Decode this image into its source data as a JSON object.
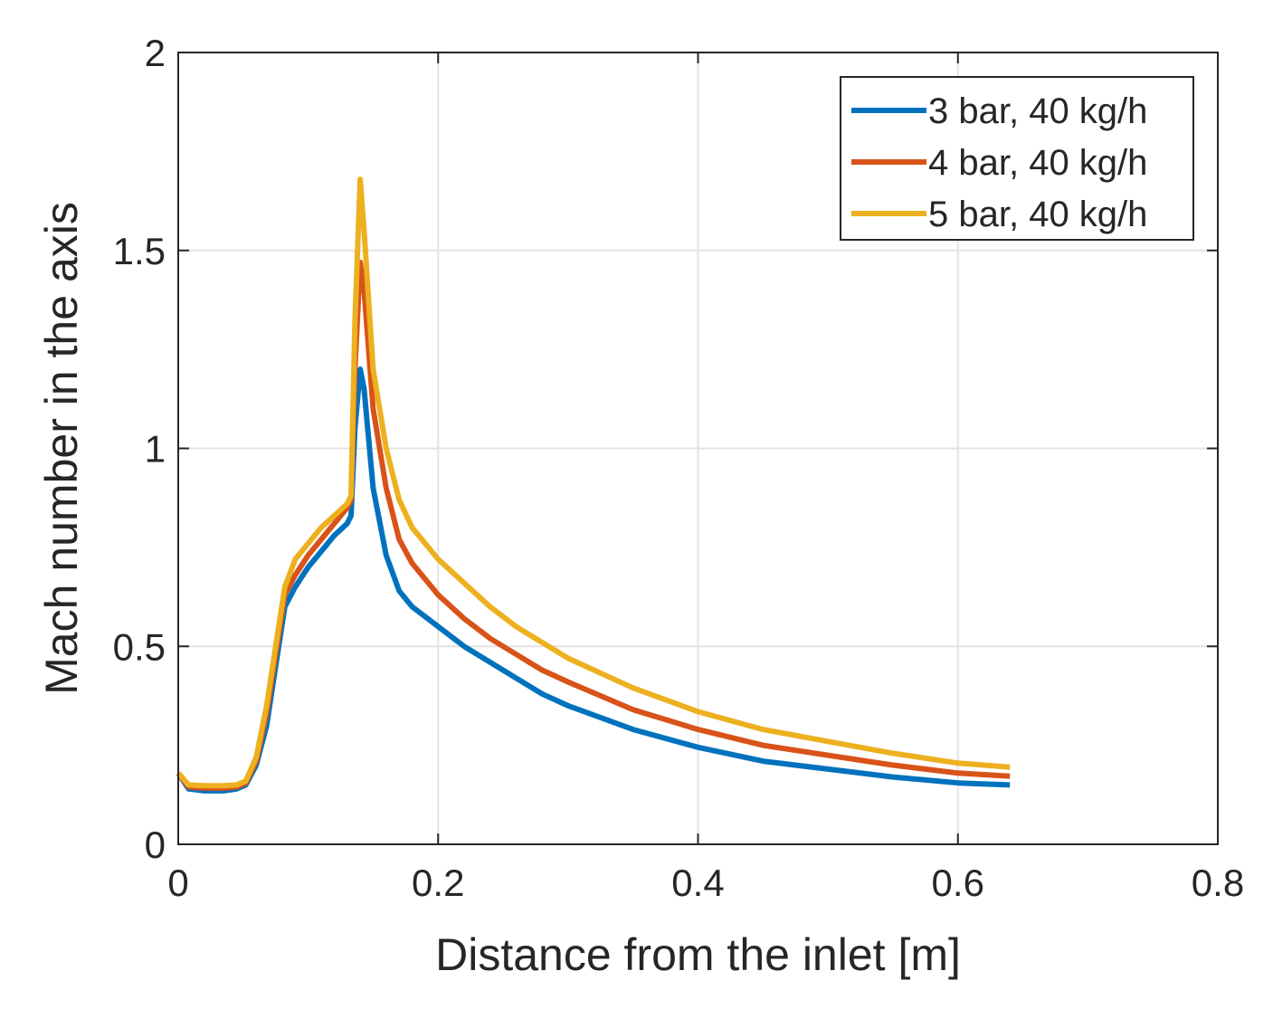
{
  "chart_data": {
    "type": "line",
    "title": "",
    "xlabel": "Distance from the inlet [m]",
    "ylabel": "Mach number in the axis",
    "xlim": [
      0,
      0.8
    ],
    "ylim": [
      0,
      2
    ],
    "xticks": [
      0,
      0.2,
      0.4,
      0.6,
      0.8
    ],
    "xtick_labels": [
      "0",
      "0.2",
      "0.4",
      "0.6",
      "0.8"
    ],
    "yticks": [
      0,
      0.5,
      1,
      1.5,
      2
    ],
    "ytick_labels": [
      "0",
      "0.5",
      "1",
      "1.5",
      "2"
    ],
    "grid": true,
    "legend_position": "top-right",
    "series": [
      {
        "name": "3 bar, 40 kg/h",
        "color": "#0072BD",
        "x": [
          0,
          0.008,
          0.02,
          0.035,
          0.045,
          0.052,
          0.06,
          0.068,
          0.075,
          0.082,
          0.09,
          0.1,
          0.11,
          0.12,
          0.13,
          0.133,
          0.136,
          0.14,
          0.143,
          0.15,
          0.16,
          0.17,
          0.18,
          0.2,
          0.22,
          0.24,
          0.26,
          0.28,
          0.3,
          0.35,
          0.4,
          0.45,
          0.5,
          0.55,
          0.6,
          0.64
        ],
        "y": [
          0.18,
          0.14,
          0.135,
          0.135,
          0.14,
          0.15,
          0.2,
          0.3,
          0.45,
          0.6,
          0.65,
          0.7,
          0.74,
          0.78,
          0.81,
          0.83,
          1.05,
          1.2,
          1.15,
          0.9,
          0.73,
          0.64,
          0.6,
          0.55,
          0.5,
          0.46,
          0.42,
          0.38,
          0.35,
          0.29,
          0.245,
          0.21,
          0.19,
          0.17,
          0.155,
          0.15
        ]
      },
      {
        "name": "4 bar, 40 kg/h",
        "color": "#D95319",
        "x": [
          0,
          0.008,
          0.02,
          0.035,
          0.045,
          0.052,
          0.06,
          0.068,
          0.075,
          0.082,
          0.09,
          0.1,
          0.11,
          0.12,
          0.13,
          0.133,
          0.136,
          0.14,
          0.143,
          0.15,
          0.16,
          0.17,
          0.18,
          0.2,
          0.22,
          0.24,
          0.26,
          0.28,
          0.3,
          0.35,
          0.4,
          0.45,
          0.5,
          0.55,
          0.6,
          0.64
        ],
        "y": [
          0.18,
          0.145,
          0.142,
          0.142,
          0.145,
          0.155,
          0.21,
          0.33,
          0.48,
          0.63,
          0.68,
          0.73,
          0.77,
          0.81,
          0.85,
          0.87,
          1.2,
          1.47,
          1.4,
          1.1,
          0.9,
          0.77,
          0.71,
          0.63,
          0.57,
          0.52,
          0.48,
          0.44,
          0.41,
          0.34,
          0.29,
          0.25,
          0.225,
          0.2,
          0.18,
          0.172
        ]
      },
      {
        "name": "5 bar, 40 kg/h",
        "color": "#EDB120",
        "x": [
          0,
          0.008,
          0.02,
          0.035,
          0.045,
          0.052,
          0.06,
          0.068,
          0.075,
          0.082,
          0.09,
          0.1,
          0.11,
          0.12,
          0.13,
          0.133,
          0.136,
          0.14,
          0.143,
          0.15,
          0.16,
          0.17,
          0.18,
          0.2,
          0.22,
          0.24,
          0.26,
          0.28,
          0.3,
          0.35,
          0.4,
          0.45,
          0.5,
          0.55,
          0.6,
          0.64
        ],
        "y": [
          0.18,
          0.15,
          0.148,
          0.148,
          0.15,
          0.16,
          0.22,
          0.35,
          0.5,
          0.65,
          0.72,
          0.76,
          0.8,
          0.83,
          0.86,
          0.88,
          1.32,
          1.68,
          1.55,
          1.2,
          1.0,
          0.87,
          0.8,
          0.72,
          0.66,
          0.6,
          0.55,
          0.51,
          0.47,
          0.395,
          0.335,
          0.29,
          0.26,
          0.23,
          0.205,
          0.195
        ]
      }
    ]
  }
}
